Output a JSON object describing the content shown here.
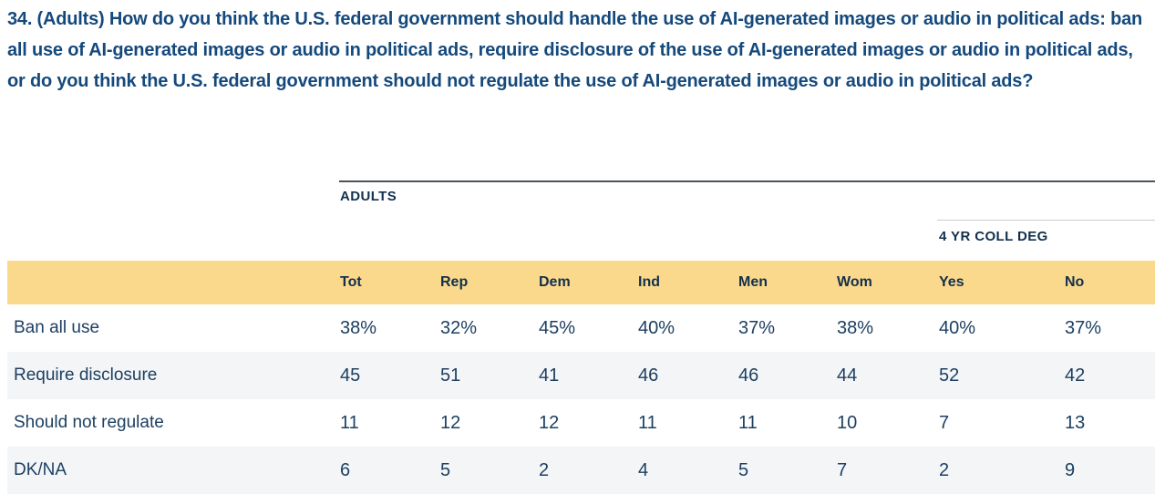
{
  "question": {
    "text": "34. (Adults) How do you think the U.S. federal government should handle the use of AI-generated images or audio in political ads: ban all use of AI-generated images or audio in political ads, require disclosure of the use of AI-generated images or audio in political ads, or do you think the U.S. federal government should not regulate the use of AI-generated images or audio in political ads?"
  },
  "table": {
    "population_label": "ADULTS",
    "subgroup_label": "4 YR COLL DEG",
    "columns": [
      "Tot",
      "Rep",
      "Dem",
      "Ind",
      "Men",
      "Wom",
      "Yes",
      "No"
    ],
    "rows": [
      {
        "label": "Ban all use",
        "values": [
          "38%",
          "32%",
          "45%",
          "40%",
          "37%",
          "38%",
          "40%",
          "37%"
        ]
      },
      {
        "label": "Require disclosure",
        "values": [
          "45",
          "51",
          "41",
          "46",
          "46",
          "44",
          "52",
          "42"
        ]
      },
      {
        "label": "Should not regulate",
        "values": [
          "11",
          "12",
          "12",
          "11",
          "11",
          "10",
          "7",
          "13"
        ]
      },
      {
        "label": "DK/NA",
        "values": [
          "6",
          "5",
          "2",
          "4",
          "5",
          "7",
          "2",
          "9"
        ]
      }
    ]
  },
  "colors": {
    "title_text": "#15497c",
    "table_text": "#1d3f61",
    "header_text": "#12304d",
    "header_band": "#fbd98c",
    "alt_row": "#f3f5f7",
    "dark_divider": "#4b545c",
    "light_divider": "#c8ccd0"
  }
}
